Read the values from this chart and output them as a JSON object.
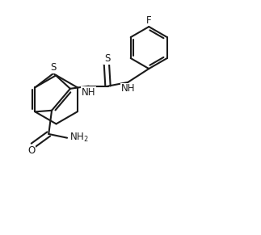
{
  "background_color": "#ffffff",
  "line_color": "#1a1a1a",
  "line_width": 1.5,
  "font_size": 8.5,
  "figsize": [
    3.23,
    2.91
  ],
  "dpi": 100,
  "xlim": [
    0,
    10
  ],
  "ylim": [
    0,
    9
  ]
}
